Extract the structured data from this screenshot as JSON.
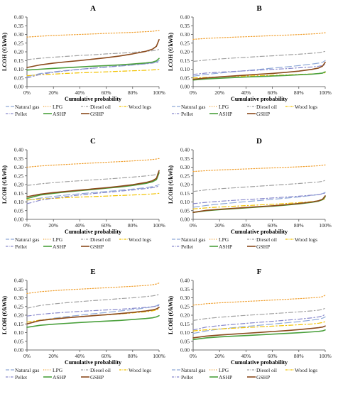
{
  "figure": {
    "y_axis_label": "LCOH (€/kWh)",
    "x_axis_label": "Cumulative probability",
    "legend": [
      {
        "name": "Natural gas",
        "color": "#8fa9d8",
        "dash": "long-dash"
      },
      {
        "name": "LPG",
        "color": "#f0a030",
        "dash": "dotted"
      },
      {
        "name": "Diesel oil",
        "color": "#a0a0a0",
        "dash": "dash-dot"
      },
      {
        "name": "Wood logs",
        "color": "#f2c200",
        "dash": "dash-dot"
      },
      {
        "name": "Pellet",
        "color": "#8888cc",
        "dash": "dash-dot"
      },
      {
        "name": "ASHP",
        "color": "#4aa03c",
        "dash": "solid"
      },
      {
        "name": "GSHP",
        "color": "#8b4a1c",
        "dash": "solid"
      }
    ]
  },
  "chart_data": [
    {
      "type": "line",
      "panel_label": "A",
      "x": [
        0,
        10,
        20,
        30,
        40,
        50,
        60,
        70,
        80,
        90,
        95,
        98,
        100
      ],
      "x_tick_labels": [
        "0%",
        "20%",
        "40%",
        "60%",
        "80%",
        "100%"
      ],
      "y_tick_labels": [
        "0.00",
        "0.05",
        "0.10",
        "0.15",
        "0.20",
        "0.25",
        "0.30",
        "0.35",
        "0.40"
      ],
      "ylim": [
        0,
        0.4
      ],
      "xlim": [
        0,
        100
      ],
      "series": [
        {
          "name": "Natural gas",
          "values": [
            0.058,
            0.075,
            0.085,
            0.093,
            0.1,
            0.106,
            0.112,
            0.118,
            0.124,
            0.132,
            0.137,
            0.142,
            0.15
          ]
        },
        {
          "name": "LPG",
          "values": [
            0.285,
            0.29,
            0.294,
            0.297,
            0.3,
            0.303,
            0.306,
            0.309,
            0.312,
            0.316,
            0.318,
            0.321,
            0.323
          ]
        },
        {
          "name": "Diesel oil",
          "values": [
            0.155,
            0.163,
            0.169,
            0.174,
            0.179,
            0.183,
            0.188,
            0.192,
            0.197,
            0.203,
            0.206,
            0.21,
            0.214
          ]
        },
        {
          "name": "Wood logs",
          "values": [
            0.063,
            0.068,
            0.072,
            0.076,
            0.079,
            0.082,
            0.085,
            0.088,
            0.091,
            0.094,
            0.096,
            0.098,
            0.1
          ]
        },
        {
          "name": "Pellet",
          "values": [
            0.05,
            0.07,
            0.082,
            0.091,
            0.099,
            0.106,
            0.113,
            0.119,
            0.125,
            0.131,
            0.135,
            0.139,
            0.142
          ]
        },
        {
          "name": "ASHP",
          "values": [
            0.095,
            0.1,
            0.105,
            0.109,
            0.113,
            0.117,
            0.121,
            0.125,
            0.13,
            0.136,
            0.141,
            0.148,
            0.162
          ]
        },
        {
          "name": "GSHP",
          "values": [
            0.11,
            0.125,
            0.135,
            0.143,
            0.15,
            0.158,
            0.166,
            0.176,
            0.188,
            0.203,
            0.215,
            0.232,
            0.27
          ]
        }
      ]
    },
    {
      "type": "line",
      "panel_label": "B",
      "x": [
        0,
        10,
        20,
        30,
        40,
        50,
        60,
        70,
        80,
        90,
        95,
        98,
        100
      ],
      "x_tick_labels": [
        "0%",
        "20%",
        "40%",
        "60%",
        "80%",
        "100%"
      ],
      "y_tick_labels": [
        "0.00",
        "0.05",
        "0.10",
        "0.15",
        "0.20",
        "0.25",
        "0.30",
        "0.35",
        "0.40"
      ],
      "ylim": [
        0,
        0.4
      ],
      "xlim": [
        0,
        100
      ],
      "series": [
        {
          "name": "Natural gas",
          "values": [
            0.06,
            0.07,
            0.078,
            0.085,
            0.092,
            0.099,
            0.106,
            0.113,
            0.121,
            0.13,
            0.135,
            0.14,
            0.15
          ]
        },
        {
          "name": "LPG",
          "values": [
            0.272,
            0.277,
            0.281,
            0.284,
            0.287,
            0.29,
            0.293,
            0.296,
            0.299,
            0.303,
            0.305,
            0.308,
            0.31
          ]
        },
        {
          "name": "Diesel oil",
          "values": [
            0.145,
            0.153,
            0.159,
            0.164,
            0.168,
            0.173,
            0.177,
            0.182,
            0.186,
            0.192,
            0.195,
            0.199,
            0.203
          ]
        },
        {
          "name": "Wood logs",
          "values": [
            0.05,
            0.053,
            0.056,
            0.059,
            0.061,
            0.063,
            0.065,
            0.067,
            0.07,
            0.073,
            0.075,
            0.077,
            0.08
          ]
        },
        {
          "name": "Pellet",
          "values": [
            0.07,
            0.078,
            0.083,
            0.087,
            0.091,
            0.095,
            0.099,
            0.103,
            0.108,
            0.113,
            0.117,
            0.121,
            0.128
          ]
        },
        {
          "name": "ASHP",
          "values": [
            0.038,
            0.044,
            0.048,
            0.052,
            0.055,
            0.058,
            0.061,
            0.064,
            0.068,
            0.072,
            0.075,
            0.078,
            0.085
          ]
        },
        {
          "name": "GSHP",
          "values": [
            0.042,
            0.05,
            0.056,
            0.061,
            0.066,
            0.071,
            0.076,
            0.082,
            0.089,
            0.099,
            0.107,
            0.118,
            0.14
          ]
        }
      ]
    },
    {
      "type": "line",
      "panel_label": "C",
      "x": [
        0,
        10,
        20,
        30,
        40,
        50,
        60,
        70,
        80,
        90,
        95,
        98,
        100
      ],
      "x_tick_labels": [
        "0%",
        "20%",
        "40%",
        "60%",
        "80%",
        "100%"
      ],
      "y_tick_labels": [
        "0.00",
        "0.05",
        "0.10",
        "0.15",
        "0.20",
        "0.25",
        "0.30",
        "0.35",
        "0.40"
      ],
      "ylim": [
        0,
        0.4
      ],
      "xlim": [
        0,
        100
      ],
      "series": [
        {
          "name": "Natural gas",
          "values": [
            0.11,
            0.122,
            0.132,
            0.14,
            0.147,
            0.154,
            0.16,
            0.167,
            0.174,
            0.182,
            0.188,
            0.194,
            0.2
          ]
        },
        {
          "name": "LPG",
          "values": [
            0.3,
            0.307,
            0.312,
            0.316,
            0.32,
            0.324,
            0.328,
            0.332,
            0.336,
            0.341,
            0.344,
            0.347,
            0.35
          ]
        },
        {
          "name": "Diesel oil",
          "values": [
            0.195,
            0.204,
            0.211,
            0.217,
            0.222,
            0.227,
            0.232,
            0.237,
            0.243,
            0.25,
            0.254,
            0.258,
            0.265
          ]
        },
        {
          "name": "Wood logs",
          "values": [
            0.112,
            0.117,
            0.121,
            0.125,
            0.128,
            0.131,
            0.134,
            0.137,
            0.14,
            0.144,
            0.146,
            0.148,
            0.15
          ]
        },
        {
          "name": "Pellet",
          "values": [
            0.09,
            0.11,
            0.122,
            0.132,
            0.14,
            0.148,
            0.155,
            0.162,
            0.169,
            0.177,
            0.182,
            0.187,
            0.192
          ]
        },
        {
          "name": "ASHP",
          "values": [
            0.12,
            0.14,
            0.15,
            0.158,
            0.165,
            0.172,
            0.179,
            0.186,
            0.195,
            0.207,
            0.216,
            0.228,
            0.268
          ]
        },
        {
          "name": "GSHP",
          "values": [
            0.13,
            0.145,
            0.154,
            0.161,
            0.168,
            0.175,
            0.182,
            0.19,
            0.199,
            0.212,
            0.222,
            0.236,
            0.28
          ]
        }
      ]
    },
    {
      "type": "line",
      "panel_label": "D",
      "x": [
        0,
        10,
        20,
        30,
        40,
        50,
        60,
        70,
        80,
        90,
        95,
        98,
        100
      ],
      "x_tick_labels": [
        "0%",
        "20%",
        "40%",
        "60%",
        "80%",
        "100%"
      ],
      "y_tick_labels": [
        "0.00",
        "0.05",
        "0.10",
        "0.15",
        "0.20",
        "0.25",
        "0.30",
        "0.35",
        "0.40"
      ],
      "ylim": [
        0,
        0.4
      ],
      "xlim": [
        0,
        100
      ],
      "series": [
        {
          "name": "Natural gas",
          "values": [
            0.07,
            0.08,
            0.088,
            0.095,
            0.102,
            0.108,
            0.115,
            0.122,
            0.129,
            0.138,
            0.143,
            0.148,
            0.155
          ]
        },
        {
          "name": "LPG",
          "values": [
            0.275,
            0.28,
            0.284,
            0.287,
            0.29,
            0.293,
            0.296,
            0.299,
            0.302,
            0.306,
            0.308,
            0.311,
            0.313
          ]
        },
        {
          "name": "Diesel oil",
          "values": [
            0.16,
            0.17,
            0.176,
            0.181,
            0.186,
            0.191,
            0.196,
            0.201,
            0.206,
            0.212,
            0.215,
            0.219,
            0.224
          ]
        },
        {
          "name": "Wood logs",
          "values": [
            0.06,
            0.066,
            0.071,
            0.075,
            0.079,
            0.083,
            0.087,
            0.091,
            0.096,
            0.102,
            0.107,
            0.112,
            0.12
          ]
        },
        {
          "name": "Pellet",
          "values": [
            0.09,
            0.098,
            0.104,
            0.109,
            0.114,
            0.118,
            0.123,
            0.128,
            0.133,
            0.139,
            0.143,
            0.147,
            0.152
          ]
        },
        {
          "name": "ASHP",
          "values": [
            0.04,
            0.05,
            0.056,
            0.061,
            0.066,
            0.071,
            0.076,
            0.082,
            0.089,
            0.098,
            0.105,
            0.113,
            0.13
          ]
        },
        {
          "name": "GSHP",
          "values": [
            0.04,
            0.052,
            0.058,
            0.063,
            0.068,
            0.073,
            0.078,
            0.084,
            0.091,
            0.1,
            0.107,
            0.116,
            0.135
          ]
        }
      ]
    },
    {
      "type": "line",
      "panel_label": "E",
      "x": [
        0,
        10,
        20,
        30,
        40,
        50,
        60,
        70,
        80,
        90,
        95,
        98,
        100
      ],
      "x_tick_labels": [
        "0%",
        "20%",
        "40%",
        "60%",
        "80%",
        "100%"
      ],
      "y_tick_labels": [
        "0.00",
        "0.05",
        "0.10",
        "0.15",
        "0.20",
        "0.25",
        "0.30",
        "0.35",
        "0.40"
      ],
      "ylim": [
        0,
        0.4
      ],
      "xlim": [
        0,
        100
      ],
      "series": [
        {
          "name": "Natural gas",
          "values": [
            0.15,
            0.17,
            0.182,
            0.192,
            0.2,
            0.208,
            0.216,
            0.224,
            0.232,
            0.242,
            0.248,
            0.254,
            0.262
          ]
        },
        {
          "name": "LPG",
          "values": [
            0.325,
            0.335,
            0.341,
            0.346,
            0.35,
            0.354,
            0.358,
            0.362,
            0.366,
            0.371,
            0.375,
            0.379,
            0.385
          ]
        },
        {
          "name": "Diesel oil",
          "values": [
            0.24,
            0.256,
            0.265,
            0.272,
            0.278,
            0.284,
            0.289,
            0.295,
            0.3,
            0.307,
            0.311,
            0.315,
            0.32
          ]
        },
        {
          "name": "Wood logs",
          "values": [
            0.16,
            0.172,
            0.18,
            0.186,
            0.192,
            0.197,
            0.202,
            0.207,
            0.213,
            0.22,
            0.225,
            0.23,
            0.238
          ]
        },
        {
          "name": "Pellet",
          "values": [
            0.195,
            0.205,
            0.212,
            0.217,
            0.222,
            0.226,
            0.23,
            0.234,
            0.239,
            0.245,
            0.249,
            0.252,
            0.256
          ]
        },
        {
          "name": "ASHP",
          "values": [
            0.13,
            0.142,
            0.148,
            0.153,
            0.158,
            0.162,
            0.166,
            0.17,
            0.175,
            0.181,
            0.185,
            0.19,
            0.197
          ]
        },
        {
          "name": "GSHP",
          "values": [
            0.15,
            0.17,
            0.178,
            0.185,
            0.191,
            0.197,
            0.203,
            0.209,
            0.216,
            0.224,
            0.23,
            0.236,
            0.245
          ]
        }
      ]
    },
    {
      "type": "line",
      "panel_label": "F",
      "x": [
        0,
        10,
        20,
        30,
        40,
        50,
        60,
        70,
        80,
        90,
        95,
        98,
        100
      ],
      "x_tick_labels": [
        "0%",
        "20%",
        "40%",
        "60%",
        "80%",
        "100%"
      ],
      "y_tick_labels": [
        "0.00",
        "0.05",
        "0.10",
        "0.15",
        "0.20",
        "0.25",
        "0.30",
        "0.35",
        "0.40"
      ],
      "ylim": [
        0,
        0.4
      ],
      "xlim": [
        0,
        100
      ],
      "series": [
        {
          "name": "Natural gas",
          "values": [
            0.095,
            0.11,
            0.12,
            0.128,
            0.135,
            0.142,
            0.149,
            0.156,
            0.163,
            0.172,
            0.177,
            0.183,
            0.19
          ]
        },
        {
          "name": "LPG",
          "values": [
            0.258,
            0.266,
            0.271,
            0.275,
            0.279,
            0.283,
            0.287,
            0.291,
            0.295,
            0.3,
            0.303,
            0.307,
            0.315
          ]
        },
        {
          "name": "Diesel oil",
          "values": [
            0.17,
            0.181,
            0.188,
            0.194,
            0.199,
            0.204,
            0.209,
            0.214,
            0.219,
            0.225,
            0.229,
            0.234,
            0.24
          ]
        },
        {
          "name": "Wood logs",
          "values": [
            0.11,
            0.116,
            0.121,
            0.125,
            0.129,
            0.133,
            0.137,
            0.141,
            0.145,
            0.15,
            0.154,
            0.158,
            0.163
          ]
        },
        {
          "name": "Pellet",
          "values": [
            0.115,
            0.132,
            0.14,
            0.147,
            0.153,
            0.159,
            0.165,
            0.171,
            0.177,
            0.185,
            0.19,
            0.196,
            0.205
          ]
        },
        {
          "name": "ASHP",
          "values": [
            0.06,
            0.07,
            0.075,
            0.079,
            0.083,
            0.087,
            0.091,
            0.095,
            0.099,
            0.104,
            0.107,
            0.11,
            0.115
          ]
        },
        {
          "name": "GSHP",
          "values": [
            0.07,
            0.08,
            0.086,
            0.091,
            0.096,
            0.101,
            0.106,
            0.111,
            0.117,
            0.124,
            0.128,
            0.132,
            0.138
          ]
        }
      ]
    }
  ]
}
